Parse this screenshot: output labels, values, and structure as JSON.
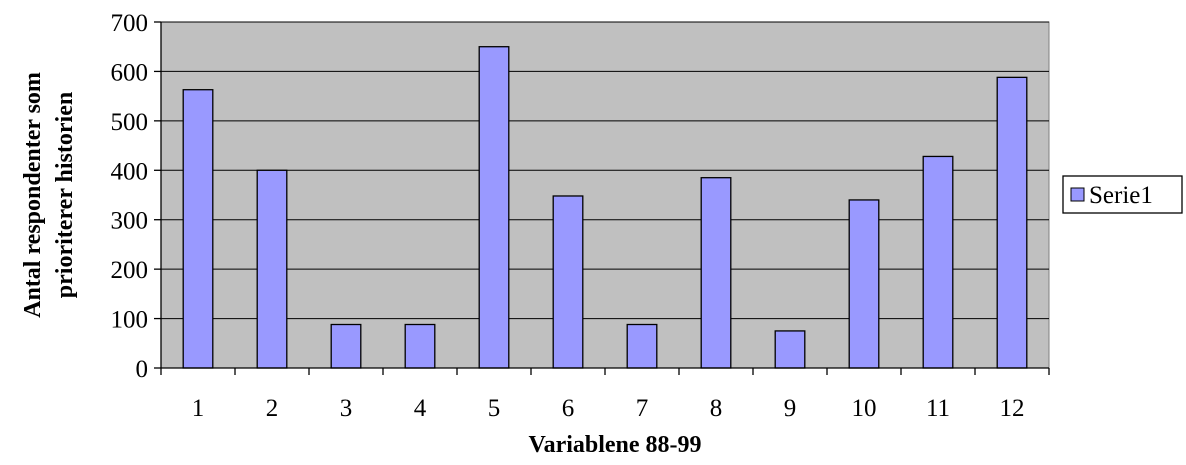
{
  "chart_data": {
    "type": "bar",
    "categories": [
      "1",
      "2",
      "3",
      "4",
      "5",
      "6",
      "7",
      "8",
      "9",
      "10",
      "11",
      "12"
    ],
    "series": [
      {
        "name": "Serie1",
        "values": [
          563,
          400,
          88,
          88,
          650,
          348,
          88,
          385,
          75,
          340,
          428,
          588
        ]
      }
    ],
    "xlabel": "Variablene 88-99",
    "ylabel_lines": [
      "Antal respondenter som",
      "prioriterer historien"
    ],
    "ylim": [
      0,
      700
    ],
    "yticks": [
      0,
      100,
      200,
      300,
      400,
      500,
      600,
      700
    ],
    "grid": true,
    "legend_position": "right",
    "colors": {
      "bar_fill": "#9999ff",
      "bar_stroke": "#000000",
      "plot_background": "#c0c0c0",
      "gridline": "#000000"
    }
  }
}
